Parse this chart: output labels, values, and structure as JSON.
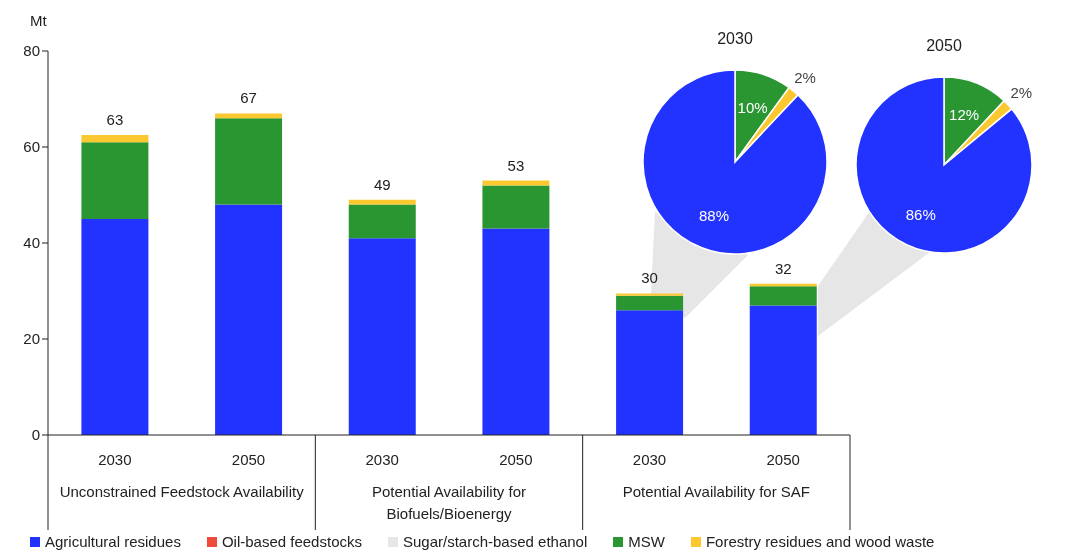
{
  "chart_data": [
    {
      "type": "bar",
      "stacked": true,
      "ylabel": "Mt",
      "categories": [
        "2030",
        "2050",
        "2030",
        "2050",
        "2030",
        "2050"
      ],
      "series": [
        {
          "name": "Agricultural residues",
          "color": "#2233ff",
          "values": [
            45,
            48,
            41,
            43,
            26,
            27
          ]
        },
        {
          "name": "Oil-based feedstocks",
          "color": "#f04a3a",
          "values": [
            0,
            0,
            0,
            0,
            0,
            0
          ]
        },
        {
          "name": "Sugar/starch-based ethanol",
          "color": "#e6e6e6",
          "values": [
            0,
            0,
            0,
            0,
            0,
            0
          ]
        },
        {
          "name": "MSW",
          "color": "#2a9632",
          "values": [
            16,
            18,
            7,
            9,
            3,
            4
          ]
        },
        {
          "name": "Forestry residues and wood waste",
          "color": "#fcc82f",
          "values": [
            1.5,
            1,
            1,
            1,
            0.5,
            0.5
          ]
        }
      ],
      "totals": [
        "63",
        "67",
        "49",
        "53",
        "30",
        "32"
      ],
      "ylim": [
        0,
        80
      ],
      "yticks": [
        0,
        20,
        40,
        60,
        80
      ],
      "legend": "bottom",
      "annotations": [
        "Unconstrained Feedstock Availability",
        "Potential Availability for Biofuels/Bioenergy",
        "Potential Availability for SAF"
      ]
    },
    {
      "type": "pie",
      "title": "2030",
      "categories": [
        null,
        null,
        null
      ],
      "values": [
        10,
        2,
        88
      ],
      "colors": [
        "#2a9632",
        "#fcc82f",
        "#2233ff"
      ],
      "value_labels": [
        "10%",
        "2%",
        "88%"
      ]
    },
    {
      "type": "pie",
      "title": "2050",
      "categories": [
        null,
        null,
        null
      ],
      "values": [
        12,
        2,
        86
      ],
      "colors": [
        "#2a9632",
        "#fcc82f",
        "#2233ff"
      ],
      "value_labels": [
        "12%",
        "2%",
        "86%"
      ]
    }
  ]
}
